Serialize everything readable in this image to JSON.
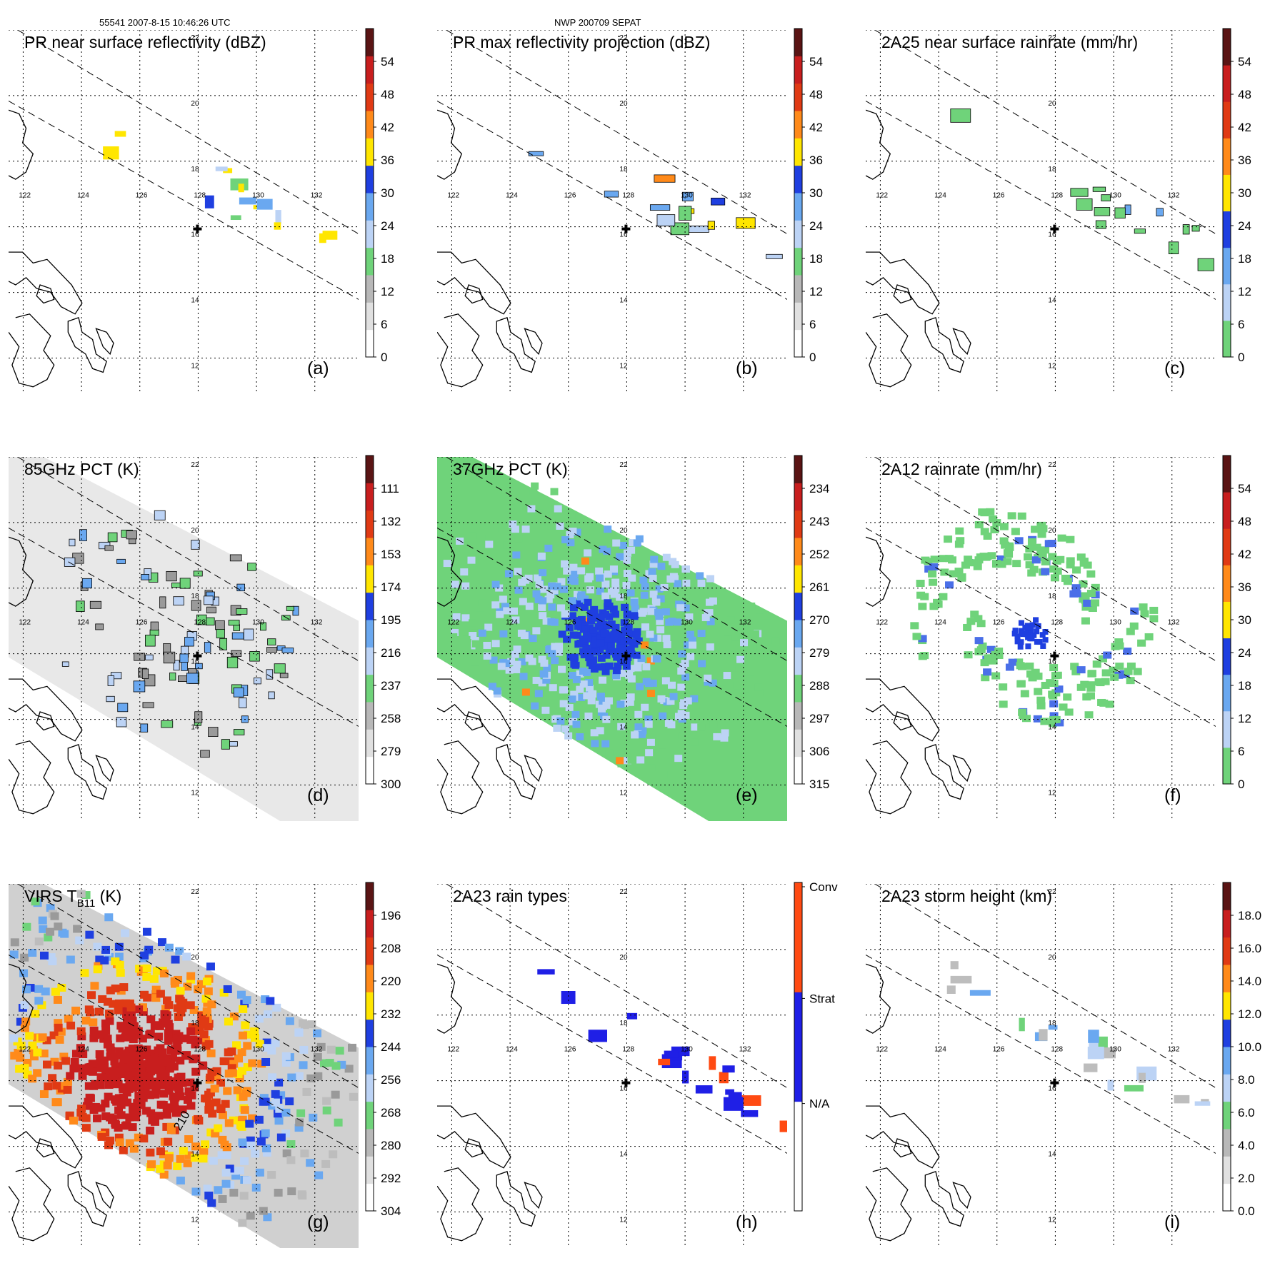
{
  "header": {
    "orbit_info": "55541 2007-8-15 10:46:26 UTC",
    "storm_info": "NWP 200709 SEPAT"
  },
  "colors": {
    "land_outline": "#000000",
    "grid": "#000000",
    "swath_edge": "#000000",
    "green": "#6fd37a",
    "light_blue": "#9ec8f5",
    "blue": "#1f3fe0",
    "yellow": "#ffe600",
    "orange": "#ff8a1a",
    "red": "#d81e1e",
    "dark_red": "#5a1414",
    "gray": "#bdbdbd"
  },
  "grid_labels": {
    "lon": [
      "122",
      "124",
      "126",
      "128",
      "130",
      "132"
    ],
    "lat": [
      "22",
      "20",
      "18",
      "16",
      "14",
      "12"
    ]
  },
  "panels": [
    {
      "id": "a",
      "letter": "(a)",
      "title": "PR near surface reflectivity (dBZ)",
      "title_sub": "",
      "title_after": "",
      "colorbar": {
        "type": "continuous",
        "ticks": [
          "54",
          "48",
          "42",
          "36",
          "30",
          "24",
          "18",
          "12",
          "6",
          "0"
        ],
        "colors": [
          "#ffffff",
          "#e0e0e0",
          "#b8b8b8",
          "#6fd37a",
          "#bcd3f5",
          "#6aa8f0",
          "#1f3fe0",
          "#ffe600",
          "#ff8a1a",
          "#e03a14",
          "#c81e1e",
          "#5a1414"
        ]
      },
      "field": "pr"
    },
    {
      "id": "b",
      "letter": "(b)",
      "title": "PR max reflectivity projection (dBZ)",
      "title_sub": "",
      "title_after": "",
      "colorbar": {
        "type": "continuous",
        "ticks": [
          "54",
          "48",
          "42",
          "36",
          "30",
          "24",
          "18",
          "12",
          "6",
          "0"
        ],
        "colors": [
          "#ffffff",
          "#e0e0e0",
          "#b8b8b8",
          "#6fd37a",
          "#bcd3f5",
          "#6aa8f0",
          "#1f3fe0",
          "#ffe600",
          "#ff8a1a",
          "#e03a14",
          "#c81e1e",
          "#5a1414"
        ]
      },
      "field": "pr_max"
    },
    {
      "id": "c",
      "letter": "(c)",
      "title": "2A25 near surface rainrate (mm/hr)",
      "title_sub": "",
      "title_after": "",
      "colorbar": {
        "type": "continuous",
        "ticks": [
          "54",
          "48",
          "42",
          "36",
          "30",
          "24",
          "18",
          "12",
          "6",
          "0"
        ],
        "colors": [
          "#6fd37a",
          "#bcd3f5",
          "#6aa8f0",
          "#1f3fe0",
          "#ffe600",
          "#ff8a1a",
          "#e03a14",
          "#c81e1e",
          "#5a1414"
        ]
      },
      "field": "rain"
    },
    {
      "id": "d",
      "letter": "(d)",
      "title": "85GHz PCT (K)",
      "title_sub": "",
      "title_after": "",
      "colorbar": {
        "type": "continuous",
        "ticks": [
          "111",
          "132",
          "153",
          "174",
          "195",
          "216",
          "237",
          "258",
          "279",
          "300"
        ],
        "colors": [
          "#ffffff",
          "#e0e0e0",
          "#b8b8b8",
          "#6fd37a",
          "#bcd3f5",
          "#6aa8f0",
          "#1f3fe0",
          "#ffe600",
          "#ff8a1a",
          "#e03a14",
          "#c81e1e",
          "#5a1414"
        ]
      },
      "field": "pct85"
    },
    {
      "id": "e",
      "letter": "(e)",
      "title": "37GHz PCT (K)",
      "title_sub": "",
      "title_after": "",
      "colorbar": {
        "type": "continuous",
        "ticks": [
          "234",
          "243",
          "252",
          "261",
          "270",
          "279",
          "288",
          "297",
          "306",
          "315"
        ],
        "colors": [
          "#ffffff",
          "#e0e0e0",
          "#b8b8b8",
          "#6fd37a",
          "#bcd3f5",
          "#6aa8f0",
          "#1f3fe0",
          "#ffe600",
          "#ff8a1a",
          "#e03a14",
          "#c81e1e",
          "#5a1414"
        ]
      },
      "field": "pct37"
    },
    {
      "id": "f",
      "letter": "(f)",
      "title": "2A12 rainrate (mm/hr)",
      "title_sub": "",
      "title_after": "",
      "colorbar": {
        "type": "continuous",
        "ticks": [
          "54",
          "48",
          "42",
          "36",
          "30",
          "24",
          "18",
          "12",
          "6",
          "0"
        ],
        "colors": [
          "#6fd37a",
          "#bcd3f5",
          "#6aa8f0",
          "#1f3fe0",
          "#ffe600",
          "#ff8a1a",
          "#e03a14",
          "#c81e1e",
          "#5a1414"
        ]
      },
      "field": "tmi_rain"
    },
    {
      "id": "g",
      "letter": "(g)",
      "title": "VIRS T",
      "title_sub": "B11",
      "title_after": " (K)",
      "contour_label": "210",
      "colorbar": {
        "type": "continuous",
        "ticks": [
          "196",
          "208",
          "220",
          "232",
          "244",
          "256",
          "268",
          "280",
          "292",
          "304"
        ],
        "colors": [
          "#ffffff",
          "#e0e0e0",
          "#b8b8b8",
          "#6fd37a",
          "#bcd3f5",
          "#6aa8f0",
          "#1f3fe0",
          "#ffe600",
          "#ff8a1a",
          "#e03a14",
          "#c81e1e",
          "#5a1414"
        ]
      },
      "field": "ir"
    },
    {
      "id": "h",
      "letter": "(h)",
      "title": "2A23 rain types",
      "title_sub": "",
      "title_after": "",
      "colorbar": {
        "type": "categorical",
        "ticks": [
          "Conv",
          "Strat",
          "N/A"
        ],
        "colors": [
          "#ffffff",
          "#1f1fe6",
          "#ff4a12"
        ]
      },
      "field": "types"
    },
    {
      "id": "i",
      "letter": "(i)",
      "title": "2A23 storm height (km)",
      "title_sub": "",
      "title_after": "",
      "colorbar": {
        "type": "continuous",
        "ticks": [
          "18.0",
          "16.0",
          "14.0",
          "12.0",
          "10.0",
          "8.0",
          "6.0",
          "4.0",
          "2.0",
          "0.0"
        ],
        "colors": [
          "#ffffff",
          "#e0e0e0",
          "#b8b8b8",
          "#6fd37a",
          "#bcd3f5",
          "#6aa8f0",
          "#1f3fe0",
          "#ffe600",
          "#ff8a1a",
          "#e03a14",
          "#c81e1e",
          "#5a1414"
        ]
      },
      "field": "height"
    }
  ]
}
